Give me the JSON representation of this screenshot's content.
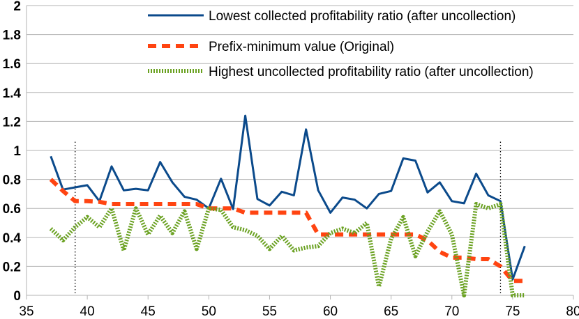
{
  "chart_data": {
    "type": "line",
    "title": "",
    "xlabel": "",
    "ylabel": "",
    "xlim": [
      35,
      80
    ],
    "ylim": [
      0,
      2
    ],
    "xticks": [
      35,
      40,
      45,
      50,
      55,
      60,
      65,
      70,
      75,
      80
    ],
    "yticks": [
      0,
      0.2,
      0.4,
      0.6,
      0.8,
      1,
      1.2,
      1.4,
      1.6,
      1.8,
      2
    ],
    "ytick_labels": [
      "0",
      "0.2",
      "0.4",
      "0.6",
      "0.8",
      "1",
      "1.2",
      "1.4",
      "1.6",
      "1.8",
      "2"
    ],
    "grid": "horizontal",
    "legend_position": "top-right",
    "reference_lines_x": [
      39,
      74
    ],
    "series": [
      {
        "name": "Lowest collected profitability ratio (after uncollection)",
        "color": "#0b4a8b",
        "style": "solid",
        "x": [
          37,
          38,
          39,
          40,
          41,
          42,
          43,
          44,
          45,
          46,
          47,
          48,
          49,
          50,
          51,
          52,
          53,
          54,
          55,
          56,
          57,
          58,
          59,
          60,
          61,
          62,
          63,
          64,
          65,
          66,
          67,
          68,
          69,
          70,
          71,
          72,
          73,
          74,
          75,
          76
        ],
        "values": [
          0.96,
          0.73,
          0.745,
          0.76,
          0.65,
          0.89,
          0.725,
          0.735,
          0.725,
          0.92,
          0.78,
          0.68,
          0.66,
          0.6,
          0.805,
          0.595,
          1.24,
          0.665,
          0.62,
          0.715,
          0.69,
          1.145,
          0.725,
          0.57,
          0.675,
          0.66,
          0.6,
          0.7,
          0.72,
          0.945,
          0.93,
          0.71,
          0.78,
          0.65,
          0.635,
          0.84,
          0.69,
          0.65,
          0.11,
          0.34
        ]
      },
      {
        "name": "Prefix-minimum value (Original)",
        "color": "#ff4411",
        "style": "dashed",
        "x": [
          37,
          38,
          39,
          40,
          41,
          42,
          43,
          44,
          45,
          46,
          47,
          48,
          49,
          50,
          51,
          52,
          53,
          54,
          55,
          56,
          57,
          58,
          59,
          60,
          61,
          62,
          63,
          64,
          65,
          66,
          67,
          68,
          69,
          70,
          71,
          72,
          73,
          74,
          75,
          76
        ],
        "values": [
          0.8,
          0.72,
          0.65,
          0.65,
          0.645,
          0.63,
          0.63,
          0.63,
          0.63,
          0.63,
          0.63,
          0.63,
          0.63,
          0.6,
          0.6,
          0.6,
          0.57,
          0.57,
          0.57,
          0.57,
          0.57,
          0.57,
          0.42,
          0.42,
          0.42,
          0.42,
          0.42,
          0.42,
          0.42,
          0.42,
          0.42,
          0.38,
          0.3,
          0.26,
          0.26,
          0.25,
          0.25,
          0.2,
          0.1,
          0.1
        ]
      },
      {
        "name": "Highest uncollected profitability ratio (after uncollection)",
        "color": "#6aa121",
        "style": "dotted",
        "x": [
          37,
          38,
          39,
          40,
          41,
          42,
          43,
          44,
          45,
          46,
          47,
          48,
          49,
          50,
          51,
          52,
          53,
          54,
          55,
          56,
          57,
          58,
          59,
          60,
          61,
          62,
          63,
          64,
          65,
          66,
          67,
          68,
          69,
          70,
          71,
          72,
          73,
          74,
          75,
          76
        ],
        "values": [
          0.46,
          0.38,
          0.47,
          0.54,
          0.47,
          0.6,
          0.31,
          0.6,
          0.42,
          0.55,
          0.43,
          0.58,
          0.32,
          0.6,
          0.59,
          0.47,
          0.45,
          0.41,
          0.32,
          0.41,
          0.31,
          0.33,
          0.34,
          0.43,
          0.46,
          0.43,
          0.5,
          0.06,
          0.39,
          0.54,
          0.27,
          0.44,
          0.58,
          0.42,
          0.0,
          0.63,
          0.6,
          0.63,
          0.0,
          0.0
        ]
      }
    ]
  }
}
